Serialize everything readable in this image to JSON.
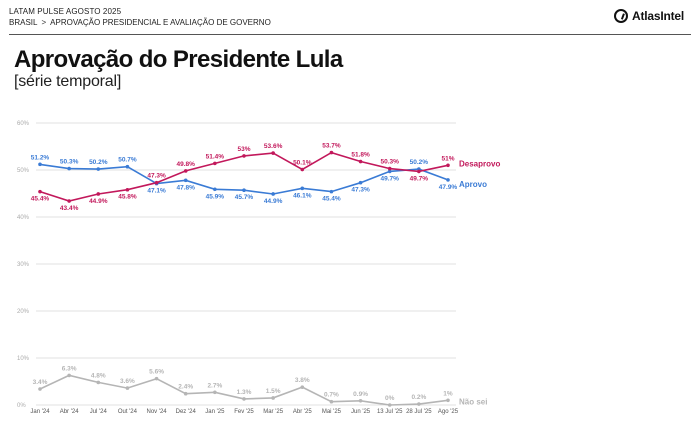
{
  "header": {
    "source": "LATAM PULSE AGOSTO 2025",
    "crumb_country": "BRASIL",
    "crumb_separator": ">",
    "crumb_section": "APROVAÇÃO PRESIDENCIAL E AVALIAÇÃO DE GOVERNO",
    "logo_text": "AtlasIntel"
  },
  "title": "Aprovação do Presidente Lula",
  "subtitle": "[série temporal]",
  "colors": {
    "aprovo": "#3a7bd5",
    "desaprovo": "#c2185b",
    "naosei": "#b5b5b5",
    "grid": "#e2e2e2"
  },
  "chart_data": {
    "type": "line",
    "categories": [
      "Jan '24",
      "Abr '24",
      "Jul '24",
      "Out '24",
      "Nov '24",
      "Dez '24",
      "Jan '25",
      "Fev '25",
      "Mar '25",
      "Abr '25",
      "Mai '25",
      "Jun '25",
      "13 Jul '25",
      "28 Jul '25",
      "Ago '25"
    ],
    "y_ticks": [
      "0%",
      "10%",
      "20%",
      "30%",
      "40%",
      "50%",
      "60%"
    ],
    "ylim": [
      0,
      60
    ],
    "grid": true,
    "series": [
      {
        "name": "Aprovo",
        "color": "#3a7bd5",
        "values": [
          51.2,
          50.3,
          50.2,
          50.7,
          47.1,
          47.8,
          45.9,
          45.7,
          44.9,
          46.1,
          45.4,
          47.3,
          49.7,
          50.2,
          47.9
        ],
        "labels": [
          "51.2%",
          "50.3%",
          "50.2%",
          "50.7%",
          "47.1%",
          "47.8%",
          "45.9%",
          "45.7%",
          "44.9%",
          "46.1%",
          "45.4%",
          "47.3%",
          "49.7%",
          "50.2%",
          "47.9%"
        ]
      },
      {
        "name": "Desaprovo",
        "color": "#c2185b",
        "values": [
          45.4,
          43.4,
          44.9,
          45.8,
          47.3,
          49.8,
          51.4,
          53,
          53.6,
          50.1,
          53.7,
          51.8,
          50.3,
          49.7,
          51
        ],
        "labels": [
          "45.4%",
          "43.4%",
          "44.9%",
          "45.8%",
          "47.3%",
          "49.8%",
          "51.4%",
          "53%",
          "53.6%",
          "50.1%",
          "53.7%",
          "51.8%",
          "50.3%",
          "49.7%",
          "51%"
        ]
      },
      {
        "name": "Não sei",
        "color": "#b5b5b5",
        "values": [
          3.4,
          6.3,
          4.8,
          3.6,
          5.6,
          2.4,
          2.7,
          1.3,
          1.5,
          3.8,
          0.7,
          0.9,
          0,
          0.2,
          1
        ],
        "labels": [
          "3.4%",
          "6.3%",
          "4.8%",
          "3.6%",
          "5.6%",
          "2.4%",
          "2.7%",
          "1.3%",
          "1.5%",
          "3.8%",
          "0.7%",
          "0.9%",
          "0%",
          "0.2%",
          "1%"
        ]
      }
    ]
  }
}
